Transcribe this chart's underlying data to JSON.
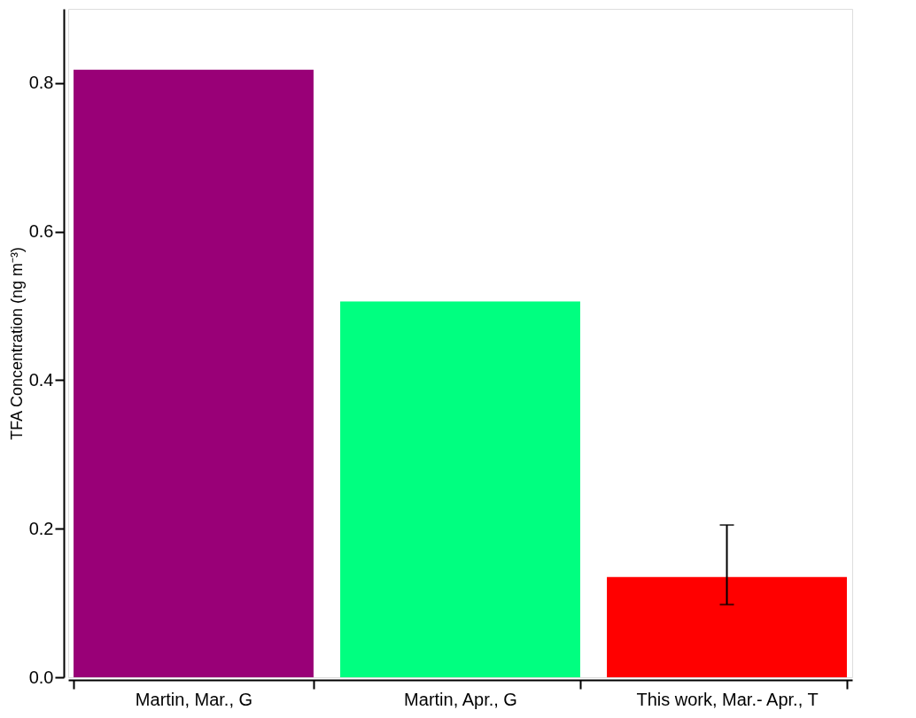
{
  "chart_data": {
    "type": "bar",
    "ylabel": "TFA Concentration (ng m⁻³)",
    "categories": [
      "Martin, Mar., G",
      "Martin, Apr., G",
      "This work, Mar.- Apr., T"
    ],
    "values": [
      0.818,
      0.506,
      0.135
    ],
    "colors": [
      "#990077",
      "#00ff80",
      "#ff0000"
    ],
    "errors": [
      null,
      null,
      [
        0.098,
        0.205
      ]
    ],
    "ylim": [
      0,
      0.9
    ],
    "yticks": [
      {
        "value": 0,
        "label": "0.0"
      },
      0.2,
      0.4,
      0.6,
      0.8
    ],
    "grid": false
  }
}
